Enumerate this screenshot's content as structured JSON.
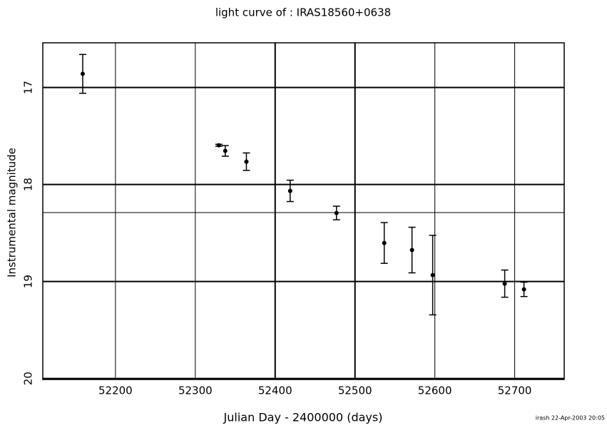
{
  "chart_data": {
    "type": "scatter",
    "title": "light curve of : IRAS18560+0638",
    "x_label": "Julian Day - 2400000 (days)",
    "y_label": "Instrumental magnitude",
    "footer": "irash 22-Apr-2003 20:05",
    "x": [
      52159,
      52329.5,
      52337.5,
      52364,
      52418.8,
      52476.8,
      52536.6,
      52571.4,
      52597.3,
      52687.5,
      52711.6
    ],
    "values": [
      16.86,
      17.596,
      17.654,
      17.765,
      18.066,
      18.294,
      18.603,
      18.676,
      18.934,
      19.022,
      19.081
    ],
    "errors": [
      0.2,
      0.01,
      0.055,
      0.09,
      0.11,
      0.07,
      0.21,
      0.235,
      0.41,
      0.14,
      0.074
    ],
    "color": "#000000",
    "xlim": [
      52109,
      52762
    ],
    "ylim": [
      16.54,
      20.01
    ],
    "y_inverted": true,
    "xticks": [
      52200,
      52300,
      52400,
      52500,
      52600,
      52700
    ],
    "yticks": [
      17,
      18,
      19,
      20
    ],
    "reference_line": 18.29,
    "grid": true
  }
}
